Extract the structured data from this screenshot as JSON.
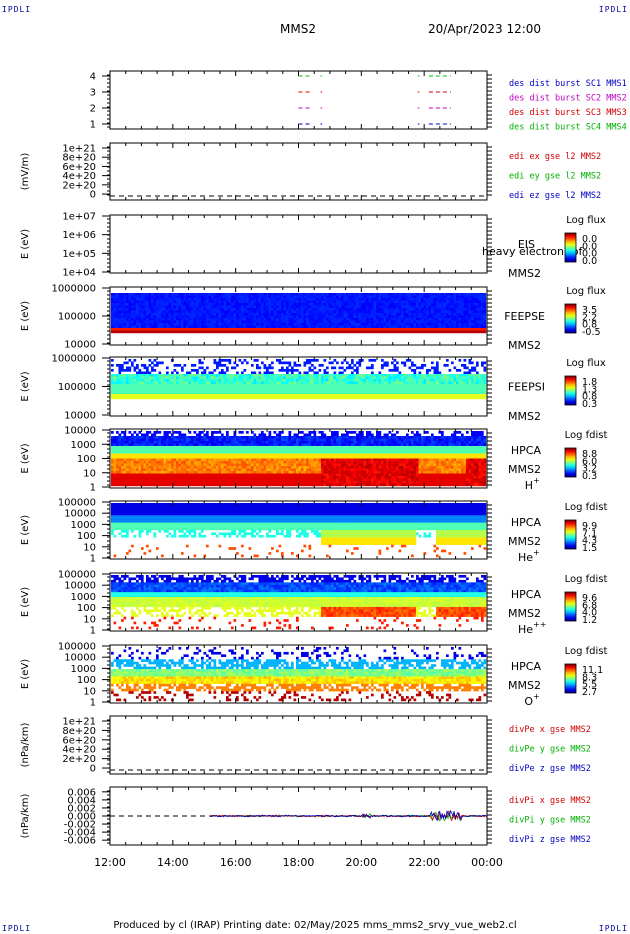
{
  "header": {
    "corner_left_top": "IPDLI",
    "corner_right_top": "IPDLI",
    "corner_left_bottom": "IPDLI",
    "corner_right_bottom": "IPDLI",
    "spacecraft": "MMS2",
    "datetime": "20/Apr/2023 12:00"
  },
  "footer": {
    "text": "Produced by cl (IRAP)   Printing date: 02/May/2025   mms_mms2_srvy_vue_web2.cl"
  },
  "chart_data": [
    {
      "type": "line",
      "id": "burst",
      "ylabel": "",
      "yticks": [
        "4",
        "3",
        "2",
        "1"
      ],
      "ylim": [
        0.5,
        4.5
      ],
      "legend": [
        {
          "text": "des dist burst SC1 MMS1",
          "color": "#0000c0"
        },
        {
          "text": "des dist burst SC2 MMS2",
          "color": "#c000c0"
        },
        {
          "text": "des dist burst SC3 MMS3",
          "color": "#d00000"
        },
        {
          "text": "des dist burst SC4 MMS4",
          "color": "#00b000"
        }
      ],
      "series": [
        {
          "color": "#00c000",
          "y": 4,
          "segments": [
            [
              18.0,
              18.35
            ],
            [
              18.7,
              18.75
            ],
            [
              21.8,
              21.85
            ],
            [
              22.15,
              22.85
            ]
          ]
        },
        {
          "color": "#d00000",
          "y": 3,
          "segments": [
            [
              18.0,
              18.35
            ],
            [
              18.7,
              18.75
            ],
            [
              21.8,
              21.85
            ],
            [
              22.15,
              22.85
            ]
          ]
        },
        {
          "color": "#c000c0",
          "y": 2,
          "segments": [
            [
              18.0,
              18.35
            ],
            [
              18.7,
              18.75
            ],
            [
              21.8,
              21.85
            ],
            [
              22.15,
              22.85
            ]
          ]
        },
        {
          "color": "#0000c0",
          "y": 1,
          "segments": [
            [
              18.0,
              18.35
            ],
            [
              18.7,
              18.75
            ],
            [
              21.8,
              21.85
            ],
            [
              22.15,
              22.85
            ]
          ]
        }
      ]
    },
    {
      "type": "line",
      "id": "edi",
      "ylabel": "(mV/m)",
      "yticks": [
        "1e+21",
        "8e+20",
        "6e+20",
        "4e+20",
        "2e+20",
        "0"
      ],
      "ylim": [
        -1e+20,
        1.05e+21
      ],
      "legend": [
        {
          "text": "edi ex gse l2 MMS2",
          "color": "#d00000"
        },
        {
          "text": "edi ey gse l2 MMS2",
          "color": "#00b000"
        },
        {
          "text": "edi ez gse l2 MMS2",
          "color": "#0000c0"
        }
      ],
      "zero_line": true
    },
    {
      "type": "heatmap",
      "id": "eis",
      "ylabel": "E (eV)",
      "yticks": [
        "1e+07",
        "1e+06",
        "1e+05",
        "1e+04"
      ],
      "instrument": "EIS",
      "spacecraft": "MMS2",
      "overlay_text": "heavy electron tof",
      "cbar_title": "Log flux",
      "cbar_ticks": [
        "0.0",
        "0.0",
        "0.0",
        "0.0"
      ]
    },
    {
      "type": "heatmap",
      "id": "feepse",
      "ylabel": "E (eV)",
      "yticks": [
        "1000000",
        "100000",
        "10000"
      ],
      "instrument": "FEEPSE",
      "spacecraft": "MMS2",
      "cbar_title": "Log flux",
      "cbar_ticks": [
        "3.5",
        "2.2",
        "0.8",
        "-0.5"
      ]
    },
    {
      "type": "heatmap",
      "id": "feepsi",
      "ylabel": "E (eV)",
      "yticks": [
        "1000000",
        "100000",
        "10000"
      ],
      "instrument": "FEEPSI",
      "spacecraft": "MMS2",
      "cbar_title": "Log flux",
      "cbar_ticks": [
        "1.8",
        "1.3",
        "0.8",
        "0.3"
      ]
    },
    {
      "type": "heatmap",
      "id": "hpca_h",
      "ylabel": "E (eV)",
      "yticks": [
        "10000",
        "1000",
        "100",
        "10",
        "1"
      ],
      "instrument": "HPCA",
      "spacecraft": "MMS2",
      "species": "H",
      "species_sup": "+",
      "cbar_title": "Log fdist",
      "cbar_ticks": [
        "8.8",
        "6.0",
        "3.2",
        "0.3"
      ]
    },
    {
      "type": "heatmap",
      "id": "hpca_he",
      "ylabel": "E (eV)",
      "yticks": [
        "100000",
        "10000",
        "1000",
        "100",
        "10",
        "1"
      ],
      "instrument": "HPCA",
      "spacecraft": "MMS2",
      "species": "He",
      "species_sup": "+",
      "cbar_title": "Log fdist",
      "cbar_ticks": [
        "9.9",
        "7.1",
        "4.3",
        "1.5"
      ]
    },
    {
      "type": "heatmap",
      "id": "hpca_he2",
      "ylabel": "E (eV)",
      "yticks": [
        "100000",
        "10000",
        "1000",
        "100",
        "10",
        "1"
      ],
      "instrument": "HPCA",
      "spacecraft": "MMS2",
      "species": "He",
      "species_sup": "++",
      "cbar_title": "Log fdist",
      "cbar_ticks": [
        "9.6",
        "6.8",
        "4.0",
        "1.2"
      ]
    },
    {
      "type": "heatmap",
      "id": "hpca_o",
      "ylabel": "E (eV)",
      "yticks": [
        "100000",
        "10000",
        "1000",
        "100",
        "10",
        "1"
      ],
      "instrument": "HPCA",
      "spacecraft": "MMS2",
      "species": "O",
      "species_sup": "+",
      "cbar_title": "Log fdist",
      "cbar_ticks": [
        "11.1",
        "8.3",
        "5.5",
        "2.7"
      ]
    },
    {
      "type": "line",
      "id": "divpe",
      "ylabel": "(nPa/km)",
      "yticks": [
        "1e+21",
        "8e+20",
        "6e+20",
        "4e+20",
        "2e+20",
        "0"
      ],
      "ylim": [
        -1e+20,
        1.05e+21
      ],
      "legend": [
        {
          "text": "divPe x gse MMS2",
          "color": "#d00000"
        },
        {
          "text": "divPe y gse MMS2",
          "color": "#00b000"
        },
        {
          "text": "divPe z gse MMS2",
          "color": "#0000c0"
        }
      ],
      "zero_line": true
    },
    {
      "type": "line",
      "id": "divpi",
      "ylabel": "(nPa/km)",
      "yticks": [
        "0.006",
        "0.004",
        "0.002",
        "0.000",
        "-0.002",
        "-0.004",
        "-0.006"
      ],
      "ytick_values": [
        0.006,
        0.004,
        0.002,
        0,
        -0.002,
        -0.004,
        -0.006
      ],
      "ylim": [
        -0.0072,
        0.0072
      ],
      "legend": [
        {
          "text": "divPi x gse MMS2",
          "color": "#d00000"
        },
        {
          "text": "divPi y gse MMS2",
          "color": "#00b000"
        },
        {
          "text": "divPi z gse MMS2",
          "color": "#0000c0"
        }
      ],
      "zero_line": true,
      "data_start_hour": 15.2
    }
  ],
  "xaxis": {
    "xlim": [
      12,
      24
    ],
    "tick_hours": [
      12,
      14,
      16,
      18,
      20,
      22,
      24
    ],
    "tick_labels": [
      "12:00",
      "14:00",
      "16:00",
      "18:00",
      "20:00",
      "22:00",
      "00:00"
    ]
  }
}
